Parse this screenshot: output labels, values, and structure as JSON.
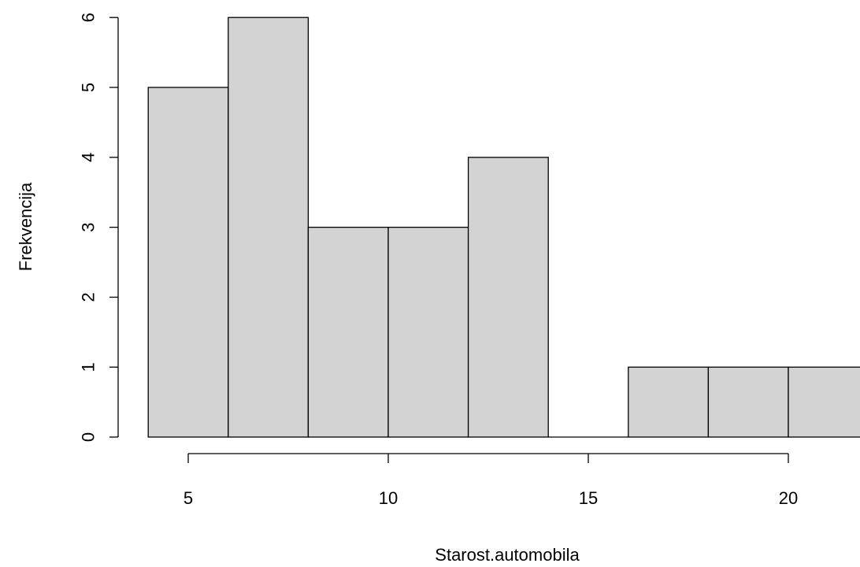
{
  "chart_data": {
    "type": "bar",
    "xlabel": "Starost.automobila",
    "ylabel": "Frekvencija",
    "bins": [
      {
        "from": 4,
        "to": 6,
        "count": 5
      },
      {
        "from": 6,
        "to": 8,
        "count": 6
      },
      {
        "from": 8,
        "to": 10,
        "count": 3
      },
      {
        "from": 10,
        "to": 12,
        "count": 3
      },
      {
        "from": 12,
        "to": 14,
        "count": 4
      },
      {
        "from": 14,
        "to": 16,
        "count": 0
      },
      {
        "from": 16,
        "to": 18,
        "count": 1
      },
      {
        "from": 18,
        "to": 20,
        "count": 1
      },
      {
        "from": 20,
        "to": 22,
        "count": 1
      }
    ],
    "x_ticks": [
      "5",
      "10",
      "15",
      "20"
    ],
    "y_ticks": [
      "0",
      "1",
      "2",
      "3",
      "4",
      "5",
      "6"
    ],
    "x_axis_range": [
      5,
      20
    ],
    "ylim": [
      0,
      6
    ],
    "grid": false,
    "bar_color": "#d3d3d3",
    "edge_color": "#000000"
  }
}
